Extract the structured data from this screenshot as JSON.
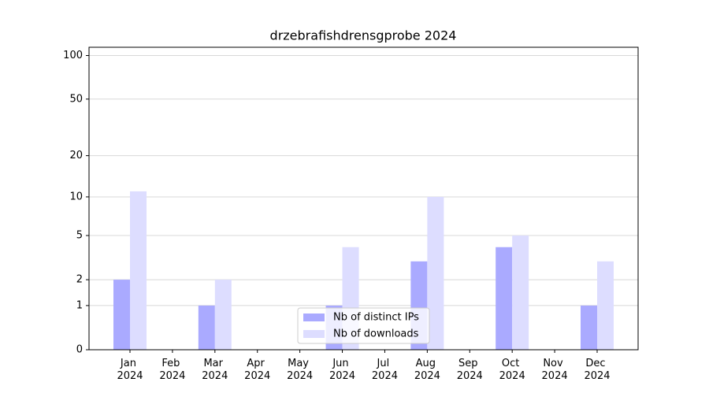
{
  "chart_data": {
    "type": "bar",
    "title": "drzebrafishdrensgprobe 2024",
    "categories": [
      "Jan 2024",
      "Feb 2024",
      "Mar 2024",
      "Apr 2024",
      "May 2024",
      "Jun 2024",
      "Jul 2024",
      "Aug 2024",
      "Sep 2024",
      "Oct 2024",
      "Nov 2024",
      "Dec 2024"
    ],
    "series": [
      {
        "name": "Nb of distinct IPs",
        "color": "#aaaaff",
        "values": [
          2,
          0,
          1,
          0,
          0,
          1,
          0,
          3,
          0,
          4,
          0,
          1
        ]
      },
      {
        "name": "Nb of downloads",
        "color": "#ddddff",
        "values": [
          11,
          0,
          2,
          0,
          0,
          4,
          0,
          10,
          0,
          5,
          0,
          3
        ]
      }
    ],
    "yscale": "log1p",
    "ylim": [
      0,
      114
    ],
    "yticks": [
      0,
      1,
      2,
      5,
      10,
      20,
      50,
      100
    ],
    "grid": true,
    "legend": "lower center"
  }
}
